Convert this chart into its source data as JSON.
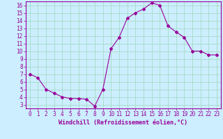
{
  "x": [
    0,
    1,
    2,
    3,
    4,
    5,
    6,
    7,
    8,
    9,
    10,
    11,
    12,
    13,
    14,
    15,
    16,
    17,
    18,
    19,
    20,
    21,
    22,
    23
  ],
  "y": [
    7.0,
    6.5,
    5.0,
    4.5,
    4.0,
    3.8,
    3.8,
    3.7,
    2.8,
    5.0,
    10.3,
    11.8,
    14.3,
    15.0,
    15.5,
    16.3,
    16.0,
    13.3,
    12.5,
    11.8,
    10.0,
    10.0,
    9.5,
    9.5
  ],
  "line_color": "#990099",
  "marker": "D",
  "marker_size": 2.0,
  "bg_color": "#cceeff",
  "grid_color": "#aaddcc",
  "axis_color": "#990099",
  "xlabel": "Windchill (Refroidissement éolien,°C)",
  "xlim": [
    -0.5,
    23.5
  ],
  "ylim": [
    2.5,
    16.5
  ],
  "yticks": [
    3,
    4,
    5,
    6,
    7,
    8,
    9,
    10,
    11,
    12,
    13,
    14,
    15,
    16
  ],
  "xticks": [
    0,
    1,
    2,
    3,
    4,
    5,
    6,
    7,
    8,
    9,
    10,
    11,
    12,
    13,
    14,
    15,
    16,
    17,
    18,
    19,
    20,
    21,
    22,
    23
  ],
  "tick_fontsize": 5.5,
  "label_fontsize": 6.0
}
